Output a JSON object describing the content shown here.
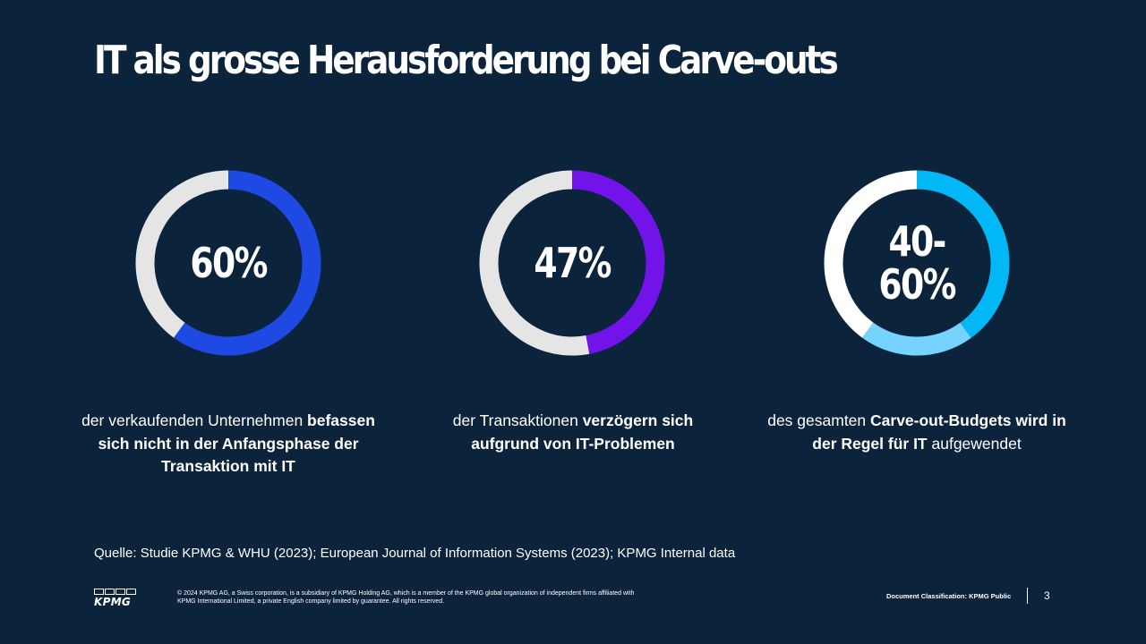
{
  "title": "IT als grosse Herausforderung bei Carve-outs",
  "stats": [
    {
      "value": "60%",
      "caption_plain_1": "der verkaufenden Unternehmen ",
      "caption_bold": "befassen sich nicht in der Anfangsphase der Transaktion mit IT",
      "caption_plain_2": "",
      "ring": [
        {
          "fraction": 0.6,
          "color": "#1e49e2"
        },
        {
          "fraction": 0.4,
          "color": "#e5e5e5"
        }
      ]
    },
    {
      "value": "47%",
      "caption_plain_1": "der Transaktionen ",
      "caption_bold": "verzögern sich aufgrund von IT-Problemen",
      "caption_plain_2": "",
      "ring": [
        {
          "fraction": 0.47,
          "color": "#7213ea"
        },
        {
          "fraction": 0.53,
          "color": "#e5e5e5"
        }
      ]
    },
    {
      "value": "40-\n60%",
      "caption_plain_1": "des gesamten ",
      "caption_bold": "Carve-out-Budgets wird in der Regel für IT",
      "caption_plain_2": " aufgewendet",
      "ring": [
        {
          "fraction": 0.4,
          "color": "#00b8f5"
        },
        {
          "fraction": 0.2,
          "color": "#76d2ff"
        },
        {
          "fraction": 0.4,
          "color": "#ffffff"
        }
      ]
    }
  ],
  "source": "Quelle: Studie KPMG & WHU (2023); European Journal of Information Systems (2023); KPMG Internal data",
  "footer": {
    "logo_text": "KPMG",
    "legal": "© 2024 KPMG AG, a Swiss corporation, is a subsidiary of KPMG Holding AG, which is a member of the KPMG global organization of independent firms affiliated with KPMG International Limited, a private English company limited by guarantee. All rights reserved.",
    "classification": "Document Classification: KPMG Public",
    "page_number": "3"
  }
}
